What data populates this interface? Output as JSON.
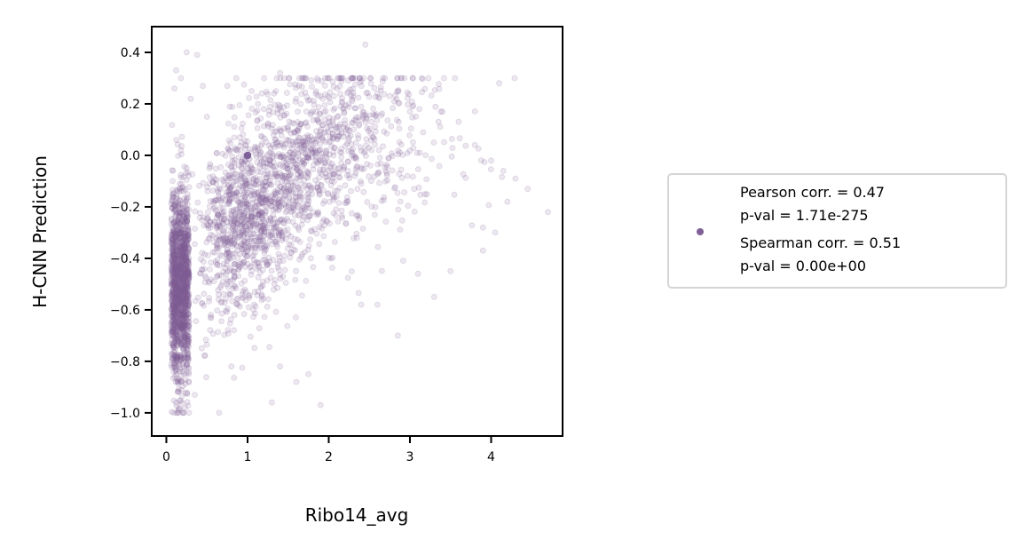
{
  "chart_data": {
    "type": "scatter",
    "xlabel": "Ribo14_avg",
    "ylabel": "H-CNN Prediction",
    "xlim": [
      -0.18,
      4.88
    ],
    "ylim": [
      -1.09,
      0.5
    ],
    "xticks": [
      {
        "value": 0,
        "label": "0"
      },
      {
        "value": 1,
        "label": "1"
      },
      {
        "value": 2,
        "label": "2"
      },
      {
        "value": 3,
        "label": "3"
      },
      {
        "value": 4,
        "label": "4"
      }
    ],
    "yticks": [
      {
        "value": 0.4,
        "label": "0.4"
      },
      {
        "value": 0.2,
        "label": "0.2"
      },
      {
        "value": 0.0,
        "label": "0.0"
      },
      {
        "value": -0.2,
        "label": "−0.2"
      },
      {
        "value": -0.4,
        "label": "−0.4"
      },
      {
        "value": -0.6,
        "label": "−0.6"
      },
      {
        "value": -0.8,
        "label": "−0.8"
      },
      {
        "value": -1.0,
        "label": "−1.0"
      }
    ],
    "grid": false,
    "marker_color": "#7f5f98",
    "legend": {
      "placement": "outside-right",
      "lines": [
        "Pearson corr. = 0.47",
        "p-val = 1.71e-275",
        "Spearman corr. = 0.51",
        "p-val = 0.00e+00"
      ]
    },
    "points": [
      [
        0.25,
        0.4
      ],
      [
        0.38,
        0.39
      ],
      [
        2.45,
        0.43
      ],
      [
        0.12,
        0.33
      ],
      [
        0.18,
        0.3
      ],
      [
        0.1,
        0.26
      ],
      [
        0.45,
        0.27
      ],
      [
        0.75,
        0.27
      ],
      [
        1.05,
        0.25
      ],
      [
        1.4,
        0.32
      ],
      [
        1.9,
        0.23
      ],
      [
        2.1,
        0.26
      ],
      [
        2.3,
        0.23
      ],
      [
        4.1,
        0.28
      ],
      [
        0.3,
        0.22
      ],
      [
        0.5,
        0.15
      ],
      [
        1.2,
        0.18
      ],
      [
        1.6,
        0.22
      ],
      [
        2.6,
        0.24
      ],
      [
        2.75,
        0.23
      ],
      [
        3.0,
        0.17
      ],
      [
        3.4,
        0.17
      ],
      [
        3.6,
        0.13
      ],
      [
        1.0,
        0.0
      ],
      [
        0.98,
        0.0
      ],
      [
        1.01,
        0.0
      ],
      [
        0.99,
        0.0
      ],
      [
        4.7,
        -0.22
      ],
      [
        4.45,
        -0.13
      ],
      [
        4.3,
        -0.09
      ],
      [
        4.2,
        -0.18
      ],
      [
        4.15,
        -0.06
      ],
      [
        3.8,
        0.04
      ],
      [
        4.0,
        -0.02
      ],
      [
        3.9,
        -0.28
      ],
      [
        3.9,
        -0.37
      ],
      [
        4.05,
        -0.3
      ],
      [
        3.5,
        -0.45
      ],
      [
        3.3,
        -0.55
      ],
      [
        2.85,
        -0.7
      ],
      [
        2.6,
        -0.58
      ],
      [
        1.9,
        -0.97
      ],
      [
        1.6,
        -0.88
      ],
      [
        1.3,
        -0.96
      ],
      [
        1.4,
        -0.82
      ],
      [
        1.75,
        -0.85
      ],
      [
        0.65,
        -1.0
      ],
      [
        0.2,
        -1.0
      ],
      [
        0.28,
        -1.0
      ],
      [
        0.15,
        -0.99
      ],
      [
        0.12,
        -0.96
      ],
      [
        0.35,
        -0.93
      ],
      [
        0.8,
        -0.82
      ],
      [
        2.4,
        -0.58
      ],
      [
        3.1,
        -0.46
      ]
    ]
  }
}
